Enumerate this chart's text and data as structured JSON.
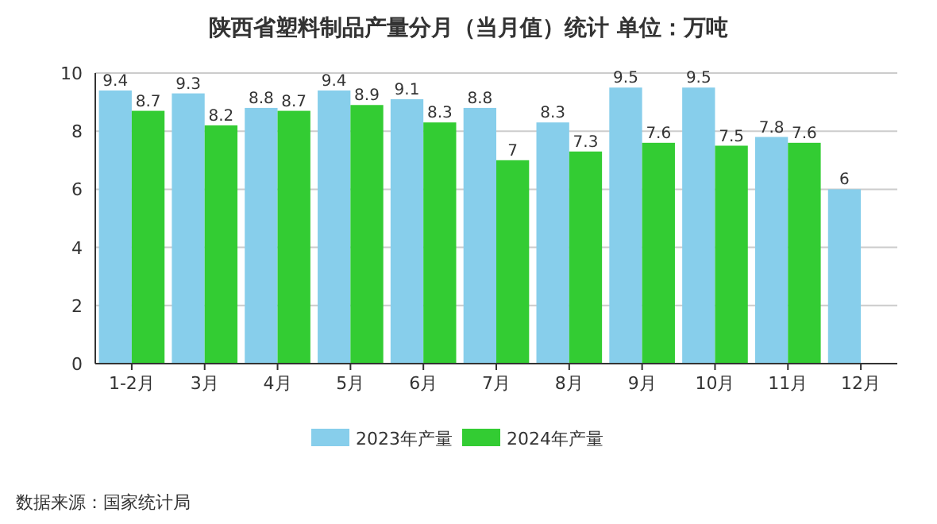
{
  "chart_data": {
    "type": "bar",
    "title": "陕西省塑料制品产量分月（当月值）统计  单位：万吨",
    "categories": [
      "1-2月",
      "3月",
      "4月",
      "5月",
      "6月",
      "7月",
      "8月",
      "9月",
      "10月",
      "11月",
      "12月"
    ],
    "series": [
      {
        "name": "2023年产量",
        "color": "#87ceeb",
        "values": [
          9.4,
          9.3,
          8.8,
          9.4,
          9.1,
          8.8,
          8.3,
          9.5,
          9.5,
          7.8,
          6
        ]
      },
      {
        "name": "2024年产量",
        "color": "#33cc33",
        "values": [
          8.7,
          8.2,
          8.7,
          8.9,
          8.3,
          7,
          7.3,
          7.6,
          7.5,
          7.6,
          null
        ]
      }
    ],
    "ylim": [
      0,
      10
    ],
    "yticks": [
      0,
      2,
      4,
      6,
      8,
      10
    ],
    "grid": "y",
    "legend": "bottom",
    "data_labels": true,
    "annotations": [
      "数据来源：国家统计局"
    ]
  }
}
